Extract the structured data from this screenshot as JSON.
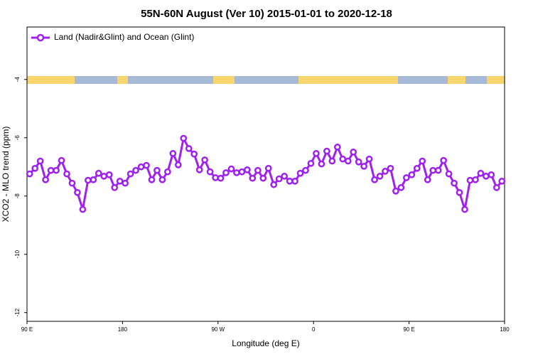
{
  "chart_data": {
    "type": "line",
    "title": "55N-60N August (Ver 10)   2015-01-01 to 2020-12-18",
    "x_label": "Longitude (deg E)",
    "y_label": "XCO2 - MLO trend (ppm)",
    "xlim": [
      90,
      540
    ],
    "xticks": [
      {
        "value": 90,
        "label": "90 E"
      },
      {
        "value": 180,
        "label": "180"
      },
      {
        "value": 270,
        "label": "90 W"
      },
      {
        "value": 360,
        "label": "0"
      },
      {
        "value": 450,
        "label": "90 E"
      },
      {
        "value": 540,
        "label": "180"
      }
    ],
    "ylim": [
      -12.3,
      -2.2
    ],
    "yticks": [
      -12,
      -10,
      -8,
      -6,
      -4
    ],
    "legend": "top-left",
    "x": [
      92.5,
      97.5,
      102.5,
      107.5,
      112.5,
      117.5,
      122.5,
      127.5,
      132.5,
      137.5,
      142.5,
      147.5,
      152.5,
      157.5,
      162.5,
      167.5,
      172.5,
      177.5,
      182.5,
      187.5,
      192.5,
      197.5,
      202.5,
      207.5,
      212.5,
      217.5,
      222.5,
      227.5,
      232.5,
      237.5,
      242.5,
      247.5,
      252.5,
      257.5,
      262.5,
      267.5,
      272.5,
      277.5,
      282.5,
      287.5,
      292.5,
      297.5,
      302.5,
      307.5,
      312.5,
      317.5,
      322.5,
      327.5,
      332.5,
      337.5,
      342.5,
      347.5,
      352.5,
      357.5,
      362.5,
      367.5,
      372.5,
      377.5,
      382.5,
      387.5,
      392.5,
      397.5,
      402.5,
      407.5,
      412.5,
      417.5,
      422.5,
      427.5,
      432.5,
      437.5,
      442.5,
      447.5,
      452.5,
      457.5,
      462.5,
      467.5,
      472.5,
      477.5,
      482.5,
      487.5,
      492.5,
      497.5,
      502.5,
      507.5,
      512.5,
      517.5,
      522.5,
      527.5,
      532.5,
      537.5
    ],
    "series": [
      {
        "name": "Land (Nadir&Glint) and Ocean (Glint)",
        "color": "#a020f0",
        "values": [
          -7.24,
          -7.05,
          -6.8,
          -7.44,
          -7.12,
          -7.12,
          -6.78,
          -7.24,
          -7.56,
          -7.88,
          -8.46,
          -7.46,
          -7.44,
          -7.22,
          -7.32,
          -7.27,
          -7.71,
          -7.49,
          -7.56,
          -7.24,
          -7.12,
          -7.0,
          -6.95,
          -7.44,
          -7.12,
          -7.44,
          -7.17,
          -6.54,
          -6.93,
          -6.02,
          -6.37,
          -6.56,
          -7.1,
          -6.76,
          -7.17,
          -7.37,
          -7.39,
          -7.2,
          -7.07,
          -7.2,
          -7.17,
          -7.1,
          -7.39,
          -7.12,
          -7.39,
          -7.05,
          -7.61,
          -7.41,
          -7.32,
          -7.49,
          -7.49,
          -7.22,
          -7.12,
          -6.88,
          -6.54,
          -6.9,
          -6.46,
          -6.8,
          -6.32,
          -6.73,
          -6.8,
          -6.49,
          -6.83,
          -6.98,
          -6.73,
          -7.44,
          -7.32,
          -7.15,
          -7.05,
          -7.83,
          -7.71,
          -7.37,
          -7.27,
          -7.05,
          -6.8,
          -7.44,
          -7.12,
          -7.12,
          -6.78,
          -7.24,
          -7.56,
          -7.88,
          -8.46,
          -7.46,
          -7.44,
          -7.22,
          -7.32,
          -7.27,
          -7.71,
          -7.49
        ]
      }
    ]
  }
}
